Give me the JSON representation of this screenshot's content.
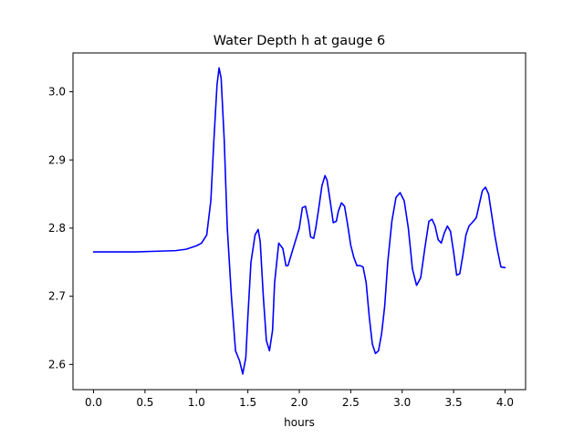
{
  "chart_data": {
    "type": "line",
    "title": "Water Depth h at gauge 6",
    "xlabel": "hours",
    "ylabel": "",
    "xlim": [
      -0.2,
      4.2
    ],
    "ylim": [
      2.563,
      3.057
    ],
    "xticks": [
      0.0,
      0.5,
      1.0,
      1.5,
      2.0,
      2.5,
      3.0,
      3.5,
      4.0
    ],
    "xtick_labels": [
      "0.0",
      "0.5",
      "1.0",
      "1.5",
      "2.0",
      "2.5",
      "3.0",
      "3.5",
      "4.0"
    ],
    "yticks": [
      2.6,
      2.7,
      2.8,
      2.9,
      3.0
    ],
    "ytick_labels": [
      "2.6",
      "2.7",
      "2.8",
      "2.9",
      "3.0"
    ],
    "grid": false,
    "legend": false,
    "line_color": "#0000ff",
    "series": [
      {
        "x": [
          0.0,
          0.2,
          0.4,
          0.6,
          0.8,
          0.9,
          1.0,
          1.05,
          1.1,
          1.14,
          1.17,
          1.2,
          1.22,
          1.24,
          1.27,
          1.3,
          1.34,
          1.38,
          1.42,
          1.45,
          1.48,
          1.5,
          1.53,
          1.57,
          1.6,
          1.62,
          1.65,
          1.68,
          1.71,
          1.74,
          1.76,
          1.8,
          1.84,
          1.87,
          1.89,
          1.92,
          1.94,
          1.97,
          2.0,
          2.03,
          2.06,
          2.09,
          2.11,
          2.14,
          2.16,
          2.19,
          2.22,
          2.25,
          2.27,
          2.3,
          2.33,
          2.36,
          2.38,
          2.41,
          2.44,
          2.47,
          2.5,
          2.53,
          2.56,
          2.59,
          2.62,
          2.65,
          2.68,
          2.71,
          2.74,
          2.77,
          2.8,
          2.83,
          2.86,
          2.9,
          2.94,
          2.98,
          3.02,
          3.06,
          3.1,
          3.14,
          3.18,
          3.22,
          3.26,
          3.29,
          3.32,
          3.35,
          3.38,
          3.41,
          3.44,
          3.47,
          3.5,
          3.53,
          3.56,
          3.59,
          3.62,
          3.65,
          3.68,
          3.72,
          3.75,
          3.78,
          3.81,
          3.84,
          3.87,
          3.9,
          3.93,
          3.96,
          4.0
        ],
        "y": [
          2.765,
          2.765,
          2.765,
          2.766,
          2.767,
          2.769,
          2.774,
          2.778,
          2.79,
          2.84,
          2.93,
          3.01,
          3.035,
          3.02,
          2.93,
          2.8,
          2.7,
          2.62,
          2.605,
          2.586,
          2.61,
          2.67,
          2.75,
          2.79,
          2.798,
          2.78,
          2.7,
          2.635,
          2.62,
          2.65,
          2.72,
          2.778,
          2.77,
          2.745,
          2.745,
          2.76,
          2.77,
          2.785,
          2.8,
          2.83,
          2.832,
          2.81,
          2.787,
          2.785,
          2.8,
          2.83,
          2.862,
          2.877,
          2.87,
          2.84,
          2.808,
          2.81,
          2.825,
          2.837,
          2.832,
          2.805,
          2.775,
          2.757,
          2.745,
          2.745,
          2.743,
          2.72,
          2.67,
          2.63,
          2.616,
          2.62,
          2.645,
          2.685,
          2.75,
          2.81,
          2.845,
          2.852,
          2.84,
          2.8,
          2.74,
          2.716,
          2.727,
          2.77,
          2.81,
          2.813,
          2.803,
          2.783,
          2.778,
          2.793,
          2.803,
          2.795,
          2.765,
          2.731,
          2.733,
          2.76,
          2.79,
          2.803,
          2.808,
          2.815,
          2.835,
          2.855,
          2.86,
          2.85,
          2.82,
          2.79,
          2.765,
          2.743,
          2.742
        ]
      }
    ]
  }
}
